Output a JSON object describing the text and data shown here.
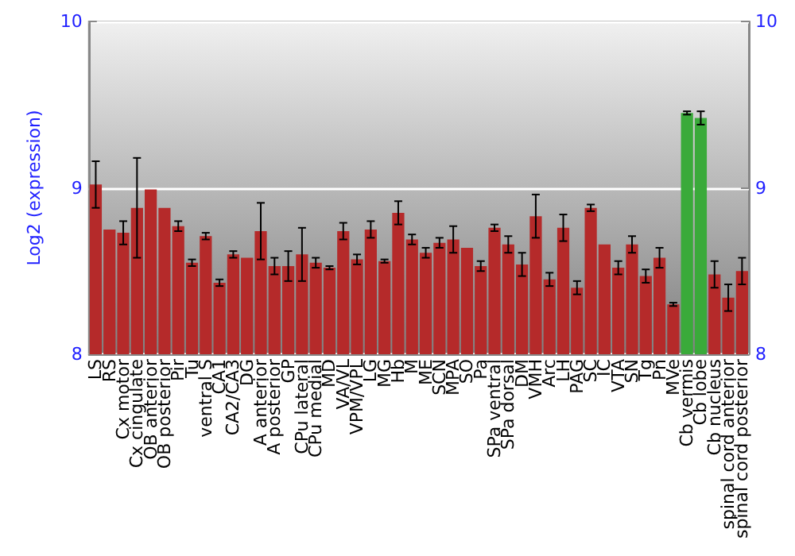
{
  "chart_data": {
    "type": "bar",
    "ylabel": "Log2 (expression)",
    "categories": [
      "LS",
      "RS",
      "Cx motor",
      "Cx cingulate",
      "OB anterior",
      "OB posterior",
      "Pir",
      "Tu",
      "ventral S",
      "CA1",
      "CA2/CA3",
      "DG",
      "A anterior",
      "A posterior",
      "GP",
      "CPu lateral",
      "CPu medial",
      "MD",
      "VA/VL",
      "VPM/VPL",
      "LG",
      "MG",
      "Hb",
      "M",
      "ME",
      "SCN",
      "MPA",
      "SO",
      "Pa",
      "SPa ventral",
      "SPa dorsal",
      "DM",
      "VMH",
      "Arc",
      "LH",
      "PAG",
      "SC",
      "IC",
      "VTA",
      "SN",
      "Tg",
      "Pn",
      "MVe",
      "Cb vermis",
      "Cb lobe",
      "Cb nucleus",
      "spinal cord anterior",
      "spinal cord posterior"
    ],
    "values": [
      9.02,
      8.75,
      8.73,
      8.88,
      8.99,
      8.88,
      8.77,
      8.55,
      8.71,
      8.43,
      8.6,
      8.58,
      8.74,
      8.53,
      8.53,
      8.6,
      8.55,
      8.52,
      8.74,
      8.57,
      8.75,
      8.56,
      8.85,
      8.69,
      8.61,
      8.67,
      8.69,
      8.64,
      8.53,
      8.76,
      8.66,
      8.54,
      8.83,
      8.45,
      8.76,
      8.4,
      8.88,
      8.66,
      8.52,
      8.66,
      8.47,
      8.58,
      8.3,
      9.45,
      9.42,
      8.48,
      8.34,
      8.5
    ],
    "errors": [
      0.14,
      null,
      0.07,
      0.3,
      null,
      null,
      0.03,
      0.02,
      0.02,
      0.02,
      0.02,
      null,
      0.17,
      0.05,
      0.09,
      0.16,
      0.03,
      0.01,
      0.05,
      0.03,
      0.05,
      0.01,
      0.07,
      0.03,
      0.03,
      0.03,
      0.08,
      null,
      0.03,
      0.02,
      0.05,
      0.07,
      0.13,
      0.04,
      0.08,
      0.04,
      0.02,
      null,
      0.04,
      0.05,
      0.04,
      0.06,
      0.01,
      0.01,
      0.04,
      0.08,
      0.08,
      0.08
    ],
    "colors": [
      "#b52a2a",
      "#b52a2a",
      "#b52a2a",
      "#b52a2a",
      "#b52a2a",
      "#b52a2a",
      "#b52a2a",
      "#b52a2a",
      "#b52a2a",
      "#b52a2a",
      "#b52a2a",
      "#b52a2a",
      "#b52a2a",
      "#b52a2a",
      "#b52a2a",
      "#b52a2a",
      "#b52a2a",
      "#b52a2a",
      "#b52a2a",
      "#b52a2a",
      "#b52a2a",
      "#b52a2a",
      "#b52a2a",
      "#b52a2a",
      "#b52a2a",
      "#b52a2a",
      "#b52a2a",
      "#b52a2a",
      "#b52a2a",
      "#b52a2a",
      "#b52a2a",
      "#b52a2a",
      "#b52a2a",
      "#b52a2a",
      "#b52a2a",
      "#b52a2a",
      "#b52a2a",
      "#b52a2a",
      "#b52a2a",
      "#b52a2a",
      "#b52a2a",
      "#b52a2a",
      "#b52a2a",
      "#3aaa3a",
      "#3aaa3a",
      "#b52a2a",
      "#b52a2a",
      "#b52a2a"
    ],
    "ylim": [
      8,
      10
    ],
    "yticks": [
      8,
      9,
      10
    ],
    "y2lim": [
      8,
      10
    ],
    "y2ticks": [
      8,
      9,
      10
    ],
    "grid": "y"
  }
}
